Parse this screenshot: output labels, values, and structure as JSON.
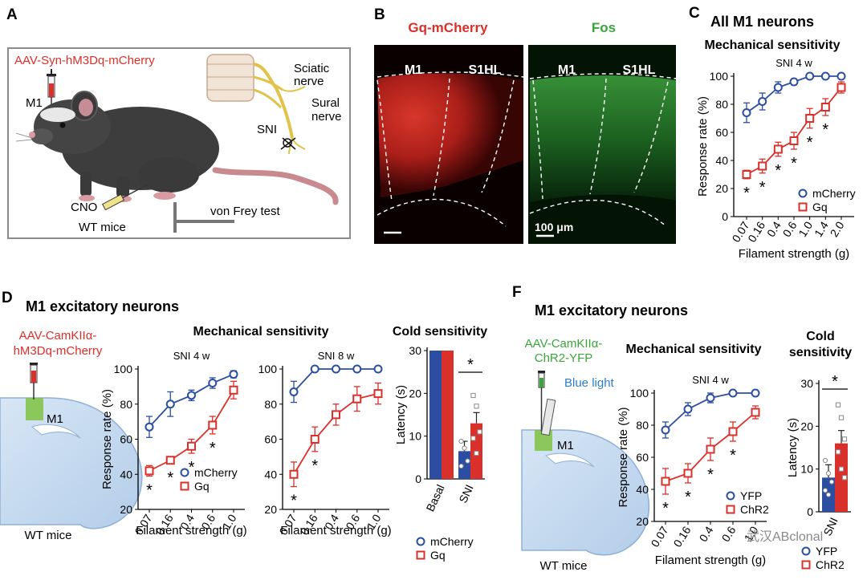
{
  "figure": {
    "panelA": {
      "letter": "A",
      "virus": "AAV-Syn-hM3Dq-mCherry",
      "m1": "M1",
      "sciatic": [
        "Sciatic",
        "nerve"
      ],
      "sural": [
        "Sural",
        "nerve"
      ],
      "sni": "SNI",
      "cno": "CNO",
      "mice": "WT mice",
      "test": "von Frey test"
    },
    "panelB": {
      "letter": "B",
      "left_title": "Gq-mCherry",
      "right_title": "Fos",
      "m1": "M1",
      "s1hl": "S1HL",
      "scale": "100 μm"
    },
    "panelC": {
      "letter": "C",
      "title": "All M1 neurons",
      "subtitle": "Mechanical sensitivity",
      "condition": "SNI 4 w"
    },
    "panelD": {
      "letter": "D",
      "title": "M1 excitatory neurons",
      "virus": [
        "AAV-CamKIIα-",
        "hM3Dq-mCherry"
      ],
      "m1": "M1",
      "mice": "WT mice",
      "mech_title": "Mechanical sensitivity",
      "cold_title": "Cold sensitivity"
    },
    "panelF": {
      "letter": "F",
      "title": "M1 excitatory neurons",
      "virus": [
        "AAV-CamKIIα-",
        "ChR2-YFP"
      ],
      "light": "Blue light",
      "m1": "M1",
      "mice": "WT mice",
      "mech_title": "Mechanical sensitivity",
      "cold_title": [
        "Cold",
        "sensitivity"
      ]
    },
    "watermark": "武汉ABclonal"
  },
  "chart_data": [
    {
      "id": "C",
      "type": "line",
      "title": "SNI 4 w",
      "xlabel": "Filament strength (g)",
      "ylabel": "Response rate (%)",
      "categories": [
        "0.07",
        "0.16",
        "0.4",
        "0.6",
        "1.0",
        "1.4",
        "2.0"
      ],
      "ylim": [
        0,
        100
      ],
      "yticks": [
        0,
        20,
        40,
        60,
        80,
        100
      ],
      "series": [
        {
          "name": "mCherry",
          "color": "#2b4ea2",
          "values": [
            74,
            82,
            92,
            96,
            100,
            100,
            100
          ],
          "err": [
            7,
            6,
            4,
            2,
            0,
            0,
            0
          ]
        },
        {
          "name": "Gq",
          "color": "#d9302b",
          "values": [
            30,
            36,
            48,
            54,
            70,
            78,
            92
          ],
          "err": [
            3,
            5,
            5,
            6,
            7,
            6,
            4
          ]
        }
      ],
      "stars": [
        "*",
        "*",
        "*",
        "*",
        "*",
        "*"
      ],
      "legend": "bottom-right"
    },
    {
      "id": "D1",
      "type": "line",
      "title": "SNI 4 w",
      "xlabel": "Filament strength (g)",
      "ylabel": "Response rate (%)",
      "categories": [
        "0.07",
        "0.16",
        "0.4",
        "0.6",
        "1.0"
      ],
      "ylim": [
        20,
        100
      ],
      "yticks": [
        20,
        40,
        60,
        80,
        100
      ],
      "series": [
        {
          "name": "mCherry",
          "color": "#2b4ea2",
          "values": [
            67,
            80,
            85,
            92,
            97
          ],
          "err": [
            6,
            7,
            3,
            3,
            2
          ]
        },
        {
          "name": "Gq",
          "color": "#d9302b",
          "values": [
            42,
            48,
            56,
            68,
            88
          ],
          "err": [
            3,
            2,
            4,
            5,
            5
          ]
        }
      ],
      "stars": [
        "*",
        "*",
        "*",
        "*"
      ],
      "legend": "bottom-right"
    },
    {
      "id": "D2",
      "type": "line",
      "title": "SNI 8 w",
      "xlabel": "Filament strength (g)",
      "ylabel": "",
      "categories": [
        "0.07",
        "0.16",
        "0.4",
        "0.6",
        "1.0"
      ],
      "ylim": [
        20,
        100
      ],
      "yticks": [
        20,
        40,
        60,
        80,
        100
      ],
      "series": [
        {
          "name": "mCherry",
          "color": "#2b4ea2",
          "values": [
            87,
            100,
            100,
            100,
            100
          ],
          "err": [
            6,
            0,
            0,
            0,
            0
          ]
        },
        {
          "name": "Gq",
          "color": "#d9302b",
          "values": [
            40,
            60,
            74,
            83,
            86
          ],
          "err": [
            7,
            7,
            6,
            7,
            6
          ]
        }
      ],
      "stars": [
        "*",
        "*"
      ]
    },
    {
      "id": "D3",
      "type": "bar",
      "ylabel": "Latency (s)",
      "categories": [
        "Basal",
        "SNI"
      ],
      "ylim": [
        0,
        30
      ],
      "yticks": [
        0,
        10,
        20,
        30
      ],
      "series": [
        {
          "name": "mCherry",
          "color": "#2b4ea2",
          "values": [
            30,
            6.5
          ],
          "err": [
            0,
            2.3
          ]
        },
        {
          "name": "Gq",
          "color": "#d9302b",
          "values": [
            30,
            13
          ],
          "err": [
            0,
            2.5
          ]
        }
      ],
      "points": {
        "mCherry_SNI": [
          8.8,
          7.2,
          4.2,
          3.0
        ],
        "Gq_SNI": [
          19.5,
          17,
          11,
          9.5,
          6
        ]
      },
      "significance": "*",
      "legend": "bottom"
    },
    {
      "id": "F1",
      "type": "line",
      "title": "SNI 4 w",
      "xlabel": "Filament strength (g)",
      "ylabel": "Response rate (%)",
      "categories": [
        "0.07",
        "0.16",
        "0.4",
        "0.6",
        "1.0"
      ],
      "ylim": [
        20,
        100
      ],
      "yticks": [
        20,
        40,
        60,
        80,
        100
      ],
      "series": [
        {
          "name": "YFP",
          "color": "#2b4ea2",
          "values": [
            77,
            90,
            97,
            100,
            100
          ],
          "err": [
            5,
            4,
            3,
            0,
            0
          ]
        },
        {
          "name": "ChR2",
          "color": "#d9302b",
          "values": [
            45,
            50,
            65,
            76,
            88
          ],
          "err": [
            8,
            6,
            7,
            6,
            4
          ]
        }
      ],
      "stars": [
        "*",
        "*",
        "*",
        "*"
      ],
      "legend": "bottom-right"
    },
    {
      "id": "F2",
      "type": "bar",
      "ylabel": "Latency (s)",
      "categories": [
        "SNI"
      ],
      "ylim": [
        0,
        30
      ],
      "yticks": [
        0,
        10,
        20,
        30
      ],
      "series": [
        {
          "name": "YFP",
          "color": "#2b4ea2",
          "values": [
            8
          ],
          "err": [
            3
          ]
        },
        {
          "name": "ChR2",
          "color": "#d9302b",
          "values": [
            16
          ],
          "err": [
            3
          ]
        }
      ],
      "points": {
        "YFP": [
          12,
          9,
          7,
          5,
          4
        ],
        "ChR2": [
          25,
          22,
          17,
          14,
          10,
          8
        ]
      },
      "significance": "*",
      "legend": "bottom"
    }
  ]
}
